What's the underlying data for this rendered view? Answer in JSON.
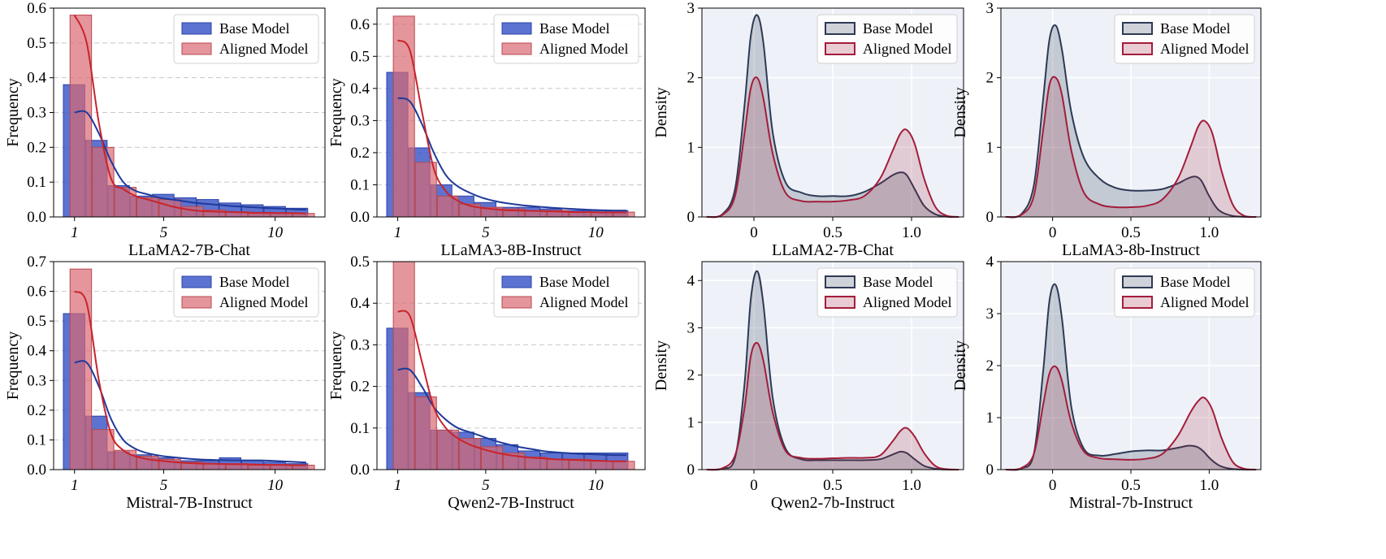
{
  "colors": {
    "base_hist": "#3f5bc9",
    "aligned_hist": "#d96a72",
    "base_curve": "#1f3a9a",
    "aligned_curve": "#c8242b",
    "base_kde": "#2e3a55",
    "aligned_kde": "#a31d3a",
    "kde_bg": "#eef2f8",
    "grid": "#c8c8c8"
  },
  "chart_data": [
    {
      "type": "bar",
      "xlabel": "LLaMA2-7B-Chat",
      "ylabel": "Frequency",
      "ylim": [
        0,
        0.6
      ],
      "yticks": [
        "0.0",
        "0.1",
        "0.2",
        "0.3",
        "0.4",
        "0.5",
        "0.6"
      ],
      "xticks": [
        "1",
        "5",
        "10"
      ],
      "legend": "top-right",
      "grid": "horizontal-dashed",
      "series": [
        {
          "name": "Base Model",
          "values": [
            0.38,
            0.22,
            0.09,
            0.06,
            0.065,
            0.055,
            0.05,
            0.04,
            0.035,
            0.03,
            0.025
          ]
        },
        {
          "name": "Aligned Model",
          "values": [
            0.58,
            0.2,
            0.085,
            0.055,
            0.05,
            0.03,
            0.02,
            0.015,
            0.01,
            0.01,
            0.01
          ]
        }
      ],
      "curves": [
        [
          0.3,
          0.3,
          0.24,
          0.16,
          0.1,
          0.075,
          0.065,
          0.055,
          0.05,
          0.045,
          0.04,
          0.037,
          0.034,
          0.031,
          0.029,
          0.027,
          0.025,
          0.024,
          0.022,
          0.021
        ],
        [
          0.58,
          0.5,
          0.27,
          0.11,
          0.08,
          0.06,
          0.05,
          0.04,
          0.03,
          0.023,
          0.018,
          0.016,
          0.015,
          0.014,
          0.013,
          0.012,
          0.012,
          0.011,
          0.011,
          0.01
        ]
      ]
    },
    {
      "type": "bar",
      "xlabel": "LLaMA3-8B-Instruct",
      "ylabel": "Frequency",
      "ylim": [
        0,
        0.65
      ],
      "yticks": [
        "0.0",
        "0.1",
        "0.2",
        "0.3",
        "0.4",
        "0.5",
        "0.6"
      ],
      "xticks": [
        "1",
        "5",
        "10"
      ],
      "legend": "top-right",
      "grid": "horizontal-dashed",
      "series": [
        {
          "name": "Base Model",
          "values": [
            0.45,
            0.215,
            0.1,
            0.065,
            0.045,
            0.03,
            0.03,
            0.025,
            0.02,
            0.02,
            0.02
          ]
        },
        {
          "name": "Aligned Model",
          "values": [
            0.625,
            0.17,
            0.065,
            0.04,
            0.03,
            0.025,
            0.02,
            0.02,
            0.015,
            0.015,
            0.015
          ]
        }
      ],
      "curves": [
        [
          0.37,
          0.36,
          0.29,
          0.2,
          0.13,
          0.095,
          0.075,
          0.06,
          0.05,
          0.043,
          0.038,
          0.034,
          0.031,
          0.028,
          0.026,
          0.024,
          0.022,
          0.021,
          0.02,
          0.02
        ],
        [
          0.55,
          0.52,
          0.33,
          0.15,
          0.08,
          0.05,
          0.035,
          0.028,
          0.024,
          0.021,
          0.02,
          0.019,
          0.018,
          0.017,
          0.016,
          0.015,
          0.015,
          0.014,
          0.014,
          0.014
        ]
      ]
    },
    {
      "type": "area",
      "xlabel": "LLaMA2-7B-Chat",
      "ylabel": "Density",
      "xlim": [
        -0.33,
        1.33
      ],
      "ylim": [
        0,
        3
      ],
      "xticks": [
        "0",
        "0.5",
        "1.0"
      ],
      "yticks": [
        "0",
        "1",
        "2",
        "3"
      ],
      "legend": "top-right",
      "grid": true,
      "series": [
        {
          "name": "Base Model",
          "x": [
            -0.3,
            -0.2,
            -0.12,
            -0.06,
            -0.02,
            0.02,
            0.06,
            0.12,
            0.2,
            0.3,
            0.4,
            0.5,
            0.6,
            0.7,
            0.8,
            0.88,
            0.93,
            0.97,
            1.02,
            1.08,
            1.15,
            1.22,
            1.3
          ],
          "y": [
            0,
            0.04,
            0.4,
            1.6,
            2.6,
            2.9,
            2.5,
            1.2,
            0.5,
            0.35,
            0.3,
            0.3,
            0.3,
            0.36,
            0.48,
            0.6,
            0.64,
            0.6,
            0.4,
            0.16,
            0.04,
            0.005,
            0
          ]
        },
        {
          "name": "Aligned Model",
          "x": [
            -0.3,
            -0.2,
            -0.12,
            -0.06,
            -0.02,
            0.02,
            0.06,
            0.12,
            0.2,
            0.3,
            0.4,
            0.5,
            0.6,
            0.7,
            0.8,
            0.88,
            0.93,
            0.97,
            1.02,
            1.08,
            1.15,
            1.22,
            1.3
          ],
          "y": [
            0,
            0.03,
            0.3,
            1.2,
            1.85,
            2.0,
            1.7,
            0.9,
            0.35,
            0.23,
            0.22,
            0.22,
            0.24,
            0.3,
            0.55,
            0.95,
            1.2,
            1.25,
            1.05,
            0.55,
            0.15,
            0.02,
            0
          ]
        }
      ]
    },
    {
      "type": "area",
      "xlabel": "LLaMA3-8b-Instruct",
      "ylabel": "Density",
      "xlim": [
        -0.33,
        1.33
      ],
      "ylim": [
        0,
        3
      ],
      "xticks": [
        "0",
        "0.5",
        "1.0"
      ],
      "yticks": [
        "0",
        "1",
        "2",
        "3"
      ],
      "legend": "top-right",
      "grid": true,
      "series": [
        {
          "name": "Base Model",
          "x": [
            -0.3,
            -0.2,
            -0.12,
            -0.06,
            -0.02,
            0.02,
            0.06,
            0.12,
            0.2,
            0.3,
            0.4,
            0.5,
            0.6,
            0.7,
            0.8,
            0.86,
            0.91,
            0.95,
            1.0,
            1.06,
            1.14,
            1.22,
            1.3
          ],
          "y": [
            0,
            0.04,
            0.45,
            1.7,
            2.55,
            2.75,
            2.4,
            1.5,
            0.85,
            0.55,
            0.42,
            0.38,
            0.38,
            0.4,
            0.48,
            0.55,
            0.58,
            0.52,
            0.3,
            0.1,
            0.02,
            0.003,
            0
          ]
        },
        {
          "name": "Aligned Model",
          "x": [
            -0.3,
            -0.2,
            -0.12,
            -0.06,
            -0.02,
            0.02,
            0.06,
            0.12,
            0.2,
            0.3,
            0.4,
            0.5,
            0.6,
            0.7,
            0.8,
            0.88,
            0.93,
            0.97,
            1.02,
            1.08,
            1.15,
            1.22,
            1.3
          ],
          "y": [
            0,
            0.03,
            0.3,
            1.25,
            1.9,
            2.0,
            1.75,
            0.95,
            0.35,
            0.18,
            0.14,
            0.14,
            0.16,
            0.25,
            0.55,
            1.0,
            1.3,
            1.38,
            1.2,
            0.65,
            0.18,
            0.02,
            0
          ]
        }
      ]
    },
    {
      "type": "bar",
      "xlabel": "Mistral-7B-Instruct",
      "ylabel": "Frequency",
      "ylim": [
        0,
        0.7
      ],
      "yticks": [
        "0.0",
        "0.1",
        "0.2",
        "0.3",
        "0.4",
        "0.5",
        "0.6",
        "0.7"
      ],
      "xticks": [
        "1",
        "5",
        "10"
      ],
      "legend": "top-right",
      "grid": "horizontal-dashed",
      "series": [
        {
          "name": "Base Model",
          "values": [
            0.525,
            0.18,
            0.06,
            0.05,
            0.04,
            0.03,
            0.03,
            0.04,
            0.03,
            0.025,
            0.02
          ]
        },
        {
          "name": "Aligned Model",
          "values": [
            0.675,
            0.135,
            0.065,
            0.045,
            0.035,
            0.025,
            0.02,
            0.02,
            0.015,
            0.015,
            0.015
          ]
        }
      ],
      "curves": [
        [
          0.36,
          0.36,
          0.28,
          0.17,
          0.1,
          0.07,
          0.055,
          0.047,
          0.042,
          0.038,
          0.035,
          0.033,
          0.032,
          0.031,
          0.031,
          0.031,
          0.03,
          0.028,
          0.026,
          0.024
        ],
        [
          0.6,
          0.56,
          0.3,
          0.12,
          0.065,
          0.045,
          0.035,
          0.03,
          0.026,
          0.023,
          0.021,
          0.02,
          0.019,
          0.018,
          0.018,
          0.017,
          0.016,
          0.016,
          0.015,
          0.015
        ]
      ]
    },
    {
      "type": "bar",
      "xlabel": "Qwen2-7B-Instruct",
      "ylabel": "Frequency",
      "ylim": [
        0,
        0.5
      ],
      "yticks": [
        "0.0",
        "0.1",
        "0.2",
        "0.3",
        "0.4",
        "0.5"
      ],
      "xticks": [
        "1",
        "5",
        "10"
      ],
      "legend": "top-right",
      "grid": "horizontal-dashed",
      "series": [
        {
          "name": "Base Model",
          "values": [
            0.34,
            0.185,
            0.095,
            0.09,
            0.075,
            0.06,
            0.045,
            0.04,
            0.04,
            0.04,
            0.04
          ]
        },
        {
          "name": "Aligned Model",
          "values": [
            0.5,
            0.175,
            0.095,
            0.075,
            0.055,
            0.04,
            0.03,
            0.025,
            0.025,
            0.02,
            0.02
          ]
        }
      ],
      "curves": [
        [
          0.24,
          0.24,
          0.2,
          0.15,
          0.12,
          0.1,
          0.09,
          0.08,
          0.07,
          0.062,
          0.055,
          0.05,
          0.045,
          0.042,
          0.04,
          0.038,
          0.037,
          0.036,
          0.035,
          0.035
        ],
        [
          0.38,
          0.37,
          0.26,
          0.15,
          0.1,
          0.075,
          0.06,
          0.05,
          0.042,
          0.036,
          0.032,
          0.029,
          0.027,
          0.025,
          0.024,
          0.023,
          0.022,
          0.021,
          0.02,
          0.02
        ]
      ]
    },
    {
      "type": "area",
      "xlabel": "Qwen2-7b-Instruct",
      "ylabel": "Density",
      "xlim": [
        -0.33,
        1.33
      ],
      "ylim": [
        0,
        4.4
      ],
      "xticks": [
        "0",
        "0.5",
        "1.0"
      ],
      "yticks": [
        "0",
        "1",
        "2",
        "3",
        "4"
      ],
      "legend": "top-right",
      "grid": true,
      "series": [
        {
          "name": "Base Model",
          "x": [
            -0.3,
            -0.2,
            -0.12,
            -0.06,
            -0.02,
            0.02,
            0.06,
            0.12,
            0.2,
            0.3,
            0.4,
            0.5,
            0.6,
            0.7,
            0.8,
            0.88,
            0.93,
            0.97,
            1.02,
            1.08,
            1.15,
            1.22,
            1.3
          ],
          "y": [
            0,
            0.02,
            0.25,
            1.8,
            3.6,
            4.2,
            3.5,
            1.5,
            0.45,
            0.22,
            0.2,
            0.2,
            0.2,
            0.2,
            0.22,
            0.32,
            0.38,
            0.35,
            0.22,
            0.08,
            0.02,
            0.002,
            0
          ]
        },
        {
          "name": "Aligned Model",
          "x": [
            -0.3,
            -0.2,
            -0.12,
            -0.06,
            -0.02,
            0.02,
            0.06,
            0.12,
            0.2,
            0.3,
            0.4,
            0.5,
            0.6,
            0.7,
            0.8,
            0.88,
            0.93,
            0.97,
            1.02,
            1.08,
            1.15,
            1.22,
            1.3
          ],
          "y": [
            0,
            0.03,
            0.3,
            1.3,
            2.4,
            2.68,
            2.3,
            1.2,
            0.4,
            0.25,
            0.23,
            0.24,
            0.25,
            0.25,
            0.3,
            0.6,
            0.82,
            0.88,
            0.7,
            0.35,
            0.08,
            0.01,
            0
          ]
        }
      ]
    },
    {
      "type": "area",
      "xlabel": "Mistral-7b-Instruct",
      "ylabel": "Density",
      "xlim": [
        -0.33,
        1.33
      ],
      "ylim": [
        0,
        4
      ],
      "xticks": [
        "0",
        "0.5",
        "1.0"
      ],
      "yticks": [
        "0",
        "1",
        "2",
        "3",
        "4"
      ],
      "legend": "top-right",
      "grid": true,
      "series": [
        {
          "name": "Base Model",
          "x": [
            -0.3,
            -0.2,
            -0.12,
            -0.06,
            -0.02,
            0.02,
            0.06,
            0.12,
            0.2,
            0.3,
            0.4,
            0.5,
            0.6,
            0.7,
            0.8,
            0.87,
            0.92,
            0.96,
            1.01,
            1.07,
            1.14,
            1.22,
            1.3
          ],
          "y": [
            0,
            0.02,
            0.3,
            1.9,
            3.25,
            3.55,
            2.9,
            1.2,
            0.4,
            0.27,
            0.3,
            0.35,
            0.37,
            0.37,
            0.42,
            0.46,
            0.44,
            0.36,
            0.2,
            0.07,
            0.015,
            0.002,
            0
          ]
        },
        {
          "name": "Aligned Model",
          "x": [
            -0.3,
            -0.2,
            -0.12,
            -0.06,
            -0.02,
            0.02,
            0.06,
            0.12,
            0.2,
            0.3,
            0.4,
            0.5,
            0.6,
            0.7,
            0.8,
            0.88,
            0.93,
            0.97,
            1.02,
            1.08,
            1.15,
            1.22,
            1.3
          ],
          "y": [
            0,
            0.03,
            0.3,
            1.25,
            1.85,
            1.98,
            1.7,
            0.9,
            0.35,
            0.22,
            0.2,
            0.19,
            0.21,
            0.3,
            0.65,
            1.1,
            1.32,
            1.38,
            1.15,
            0.6,
            0.15,
            0.02,
            0
          ]
        }
      ]
    }
  ]
}
